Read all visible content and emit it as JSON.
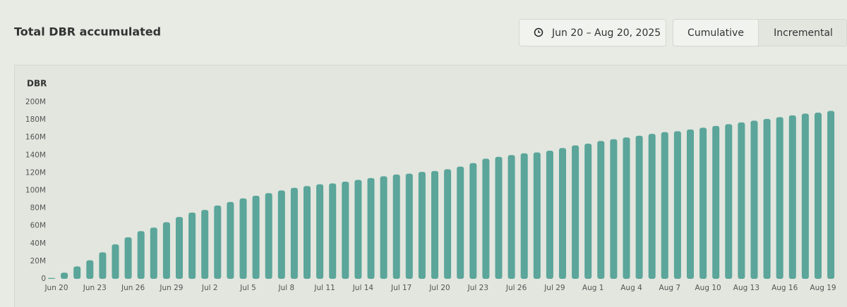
{
  "controls": {
    "date_range": "Jun 20 – Aug 20, 2025",
    "tabs": [
      "Cumulative",
      "Incremental"
    ]
  },
  "chart_data": {
    "type": "bar",
    "title": "Total DBR accumulated",
    "y_label": "DBR",
    "color": "#5ba59a",
    "categories": [
      "Jun 20",
      null,
      null,
      "Jun 23",
      null,
      null,
      "Jun 26",
      null,
      null,
      "Jun 29",
      null,
      null,
      "Jul 2",
      null,
      null,
      "Jul 5",
      null,
      null,
      "Jul 8",
      null,
      null,
      "Jul 11",
      null,
      null,
      "Jul 14",
      null,
      null,
      "Jul 17",
      null,
      null,
      "Jul 20",
      null,
      null,
      "Jul 23",
      null,
      null,
      "Jul 26",
      null,
      null,
      "Jul 29",
      null,
      null,
      "Aug 1",
      null,
      null,
      "Aug 4",
      null,
      null,
      "Aug 7",
      null,
      null,
      "Aug 10",
      null,
      null,
      "Aug 13",
      null,
      null,
      "Aug 16",
      null,
      null,
      "Aug 19",
      null
    ],
    "values": [
      1000000,
      7000000,
      14000000,
      21000000,
      30000000,
      39000000,
      47000000,
      54000000,
      58000000,
      64000000,
      70000000,
      75000000,
      78000000,
      83000000,
      87000000,
      91000000,
      94000000,
      97000000,
      100000000,
      103000000,
      105000000,
      107000000,
      108000000,
      110000000,
      112000000,
      114000000,
      116000000,
      118000000,
      119000000,
      121000000,
      122000000,
      124000000,
      127000000,
      131000000,
      136000000,
      138000000,
      140000000,
      142000000,
      143000000,
      145000000,
      148000000,
      151000000,
      153000000,
      156000000,
      158000000,
      160000000,
      162000000,
      164000000,
      166000000,
      167000000,
      169000000,
      171000000,
      173000000,
      175000000,
      177000000,
      179000000,
      181000000,
      183000000,
      185000000,
      187000000,
      188000000,
      190000000
    ],
    "ylim": [
      0,
      200000000
    ],
    "yticks": [
      0,
      {
        "value": 20000000,
        "label": "20M"
      },
      {
        "value": 40000000,
        "label": "40M"
      },
      {
        "value": 60000000,
        "label": "60M"
      },
      {
        "value": 80000000,
        "label": "80M"
      },
      {
        "value": 100000000,
        "label": "100M"
      },
      {
        "value": 120000000,
        "label": "120M"
      },
      {
        "value": 140000000,
        "label": "140M"
      },
      {
        "value": 160000000,
        "label": "160M"
      },
      {
        "value": 180000000,
        "label": "180M"
      },
      {
        "value": 200000000,
        "label": "200M"
      }
    ]
  }
}
